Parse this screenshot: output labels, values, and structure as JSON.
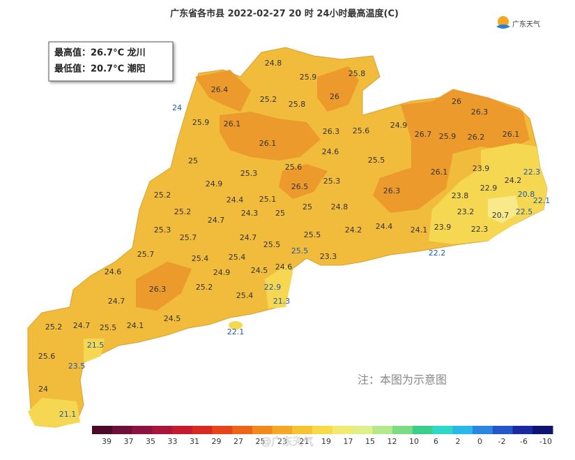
{
  "header": {
    "title": "广东省各市县 2022-02-27 20 时 24小时最高温度(C)",
    "logo": "广东天气"
  },
  "summary": {
    "max": "最高值：26.7°C 龙川",
    "min": "最低值：20.7°C 潮阳"
  },
  "map": {
    "labels": [
      "24.8",
      "25.9",
      "25.8",
      "26.4",
      "25.2",
      "26",
      "25.8",
      "24",
      "26",
      "26.3",
      "25.9",
      "26.1",
      "26.3",
      "25.6",
      "24.9",
      "26.7",
      "25.9",
      "26.2",
      "26.1",
      "26.1",
      "24.6",
      "25",
      "25.5",
      "23.9",
      "25.6",
      "26.1",
      "22.3",
      "25.3",
      "24.2",
      "24.9",
      "25.3",
      "26.5",
      "22.9",
      "26.3",
      "25.2",
      "23.8",
      "20.8",
      "24.4",
      "25.1",
      "22.1",
      "25",
      "24.8",
      "25.2",
      "24.3",
      "25",
      "23.2",
      "22.5",
      "20.7",
      "24.7",
      "24.4",
      "24.2",
      "24.1",
      "23.9",
      "22.3",
      "25.3",
      "25.5",
      "25.7",
      "24.7",
      "25.5",
      "25.5",
      "22.2",
      "25.7",
      "25.4",
      "25.4",
      "23.3",
      "24.6",
      "24.5",
      "24.6",
      "24.9",
      "26.3",
      "25.2",
      "22.9",
      "25.4",
      "24.7",
      "21.3",
      "24.5",
      "25.2",
      "24.7",
      "25.5",
      "24.1",
      "22.1",
      "21.5",
      "25.6",
      "23.5",
      "24",
      "21.1"
    ],
    "note": "注：本图为示意图"
  },
  "scale": {
    "labels": [
      "39",
      "37",
      "35",
      "33",
      "31",
      "29",
      "27",
      "25",
      "23",
      "21",
      "19",
      "17",
      "15",
      "12",
      "10",
      "6",
      "2",
      "0",
      "-2",
      "-6",
      "-10"
    ],
    "colors": [
      "#4a0a2a",
      "#6e0f3a",
      "#8c1240",
      "#a8163c",
      "#c21c2e",
      "#d82a20",
      "#e4451a",
      "#ec6418",
      "#f08a1e",
      "#f4a826",
      "#f6c432",
      "#f6da48",
      "#f2ea70",
      "#dff08a",
      "#b4e88c",
      "#7cdc86",
      "#3ccf8c",
      "#30d8c8",
      "#2ab8e8",
      "#2a86de",
      "#2456c8",
      "#1a2aa0",
      "#0e1470"
    ],
    "watermark": "@广东天气"
  }
}
